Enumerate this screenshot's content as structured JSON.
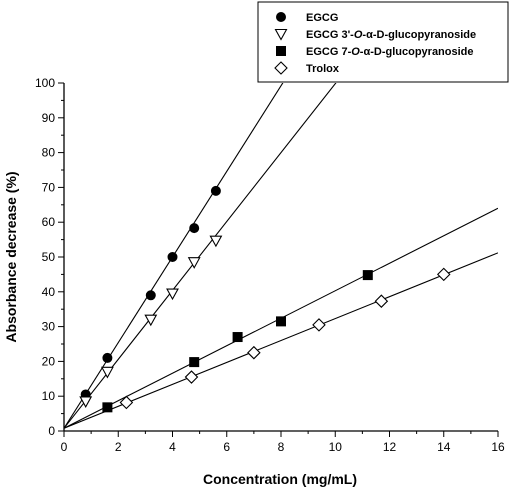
{
  "chart_data": {
    "type": "scatter",
    "xlabel": "Concentration (mg/mL)",
    "ylabel": "Absorbance decrease (%)",
    "xlim": [
      0,
      16
    ],
    "ylim": [
      0,
      100
    ],
    "x_ticks": [
      0,
      2,
      4,
      6,
      8,
      10,
      12,
      14,
      16
    ],
    "y_ticks": [
      0,
      10,
      20,
      30,
      40,
      50,
      60,
      70,
      80,
      90,
      100
    ],
    "x_tick_labels": [
      "0",
      "2",
      "4",
      "6",
      "8",
      "10",
      "12",
      "14",
      "16"
    ],
    "y_tick_labels": [
      "0",
      "10",
      "20",
      "30",
      "40",
      "50",
      "60",
      "70",
      "80",
      "90",
      "100"
    ],
    "grid": false,
    "legend_position": "top-right",
    "series": [
      {
        "name_parts": [
          "EGCG"
        ],
        "marker": "filled-circle",
        "points": [
          [
            0.8,
            10.5
          ],
          [
            1.6,
            21
          ],
          [
            3.2,
            39
          ],
          [
            4.0,
            50
          ],
          [
            4.8,
            58.3
          ],
          [
            5.6,
            69
          ]
        ],
        "fit": {
          "slope": 12.3,
          "intercept": 0.8
        }
      },
      {
        "name_parts": [
          "EGCG 3'-",
          "O",
          "-α-D-glucopyranoside"
        ],
        "marker": "open-triangle-down",
        "points": [
          [
            0.8,
            8.5
          ],
          [
            1.6,
            17
          ],
          [
            3.2,
            32
          ],
          [
            4.0,
            39.5
          ],
          [
            4.8,
            48.5
          ],
          [
            5.6,
            54.7
          ]
        ],
        "fit": {
          "slope": 9.9,
          "intercept": 0.8
        }
      },
      {
        "name_parts": [
          "EGCG 7-",
          "O",
          "-α-D-glucopyranoside"
        ],
        "marker": "filled-square",
        "points": [
          [
            1.6,
            6.8
          ],
          [
            4.8,
            19.8
          ],
          [
            6.4,
            27
          ],
          [
            8.0,
            31.5
          ],
          [
            11.2,
            44.8
          ]
        ],
        "fit": {
          "slope": 3.95,
          "intercept": 0.8
        }
      },
      {
        "name_parts": [
          "Trolox"
        ],
        "marker": "open-diamond",
        "points": [
          [
            2.3,
            8.2
          ],
          [
            4.7,
            15.5
          ],
          [
            7.0,
            22.5
          ],
          [
            9.4,
            30.5
          ],
          [
            11.7,
            37.3
          ],
          [
            14.0,
            45.0
          ]
        ],
        "fit": {
          "slope": 3.15,
          "intercept": 0.8
        }
      }
    ]
  }
}
